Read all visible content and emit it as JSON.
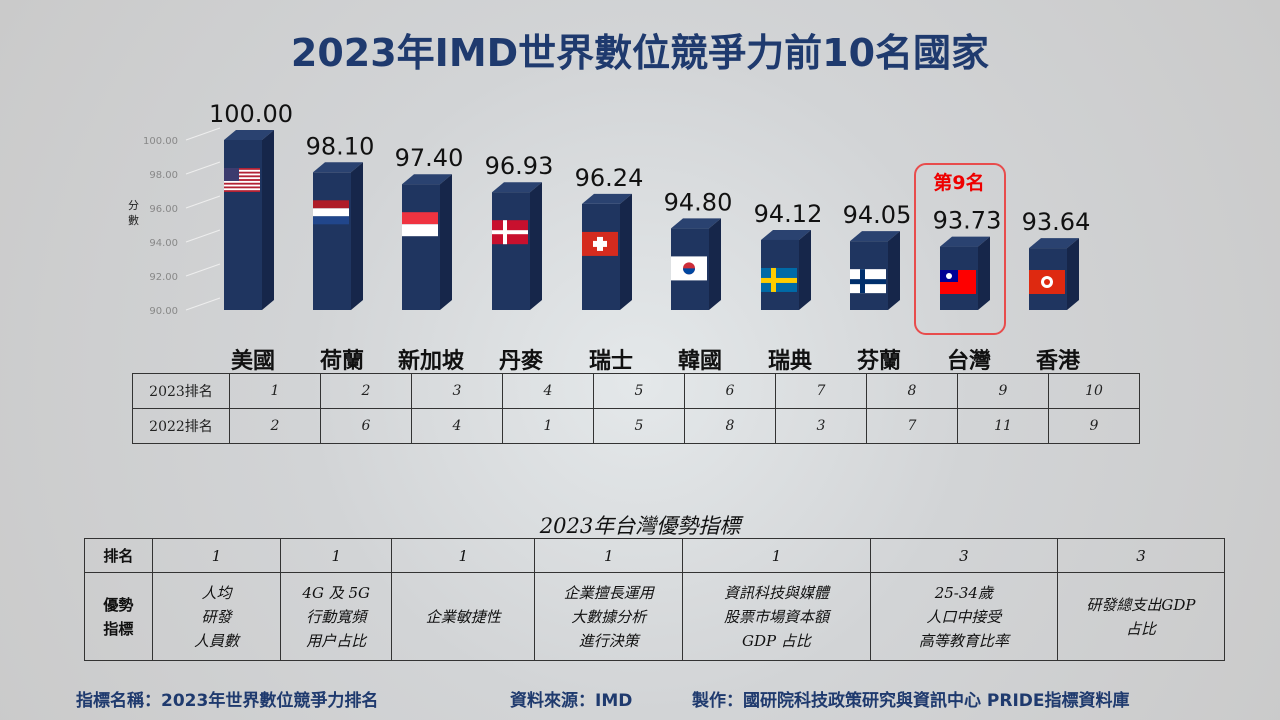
{
  "title": "2023年IMD世界數位競爭力前10名國家",
  "chart_data": {
    "type": "bar",
    "title": "2023年IMD世界數位競爭力前10名國家",
    "ylabel": "分數",
    "ylim": [
      90,
      100
    ],
    "yticks": [
      "90.00",
      "92.00",
      "94.00",
      "96.00",
      "98.00",
      "100.00"
    ],
    "categories": [
      "美國",
      "荷蘭",
      "新加坡",
      "丹麥",
      "瑞士",
      "韓國",
      "瑞典",
      "芬蘭",
      "台灣",
      "香港"
    ],
    "values": [
      100.0,
      98.1,
      97.4,
      96.93,
      96.24,
      94.8,
      94.12,
      94.05,
      93.73,
      93.64
    ],
    "value_labels": [
      "100.00",
      "98.10",
      "97.40",
      "96.93",
      "96.24",
      "94.80",
      "94.12",
      "94.05",
      "93.73",
      "93.64"
    ],
    "flags": [
      "us",
      "nl",
      "sg",
      "dk",
      "ch",
      "kr",
      "se",
      "fi",
      "tw",
      "hk"
    ],
    "bar_color": "#1f3560",
    "highlight": {
      "index": 8,
      "label": "第9名",
      "color": "#e84c4c"
    }
  },
  "rank_table": {
    "rows": [
      {
        "label": "2023排名",
        "values": [
          "1",
          "2",
          "3",
          "4",
          "5",
          "6",
          "7",
          "8",
          "9",
          "10"
        ]
      },
      {
        "label": "2022排名",
        "values": [
          "2",
          "6",
          "4",
          "1",
          "5",
          "8",
          "3",
          "7",
          "11",
          "9"
        ]
      }
    ]
  },
  "advantage": {
    "title": "2023年台灣優勢指標",
    "rank_label": "排名",
    "indicator_label": "優勢\n指標",
    "ranks": [
      "1",
      "1",
      "1",
      "1",
      "1",
      "3",
      "3"
    ],
    "indicators": [
      "人均\n研發\n人員數",
      "4G 及 5G\n行動寬頻\n用户占比",
      "企業敏捷性",
      "企業擅長運用\n大數據分析\n進行決策",
      "資訊科技與媒體\n股票市場資本額\nGDP 占比",
      "25-34歲\n人口中接受\n高等教育比率",
      "研發總支出GDP\n占比"
    ]
  },
  "footer": {
    "name": "指標名稱：2023年世界數位競爭力排名",
    "source": "資料來源：IMD",
    "producer": "製作：國研院科技政策研究與資訊中心  PRIDE指標資料庫"
  }
}
